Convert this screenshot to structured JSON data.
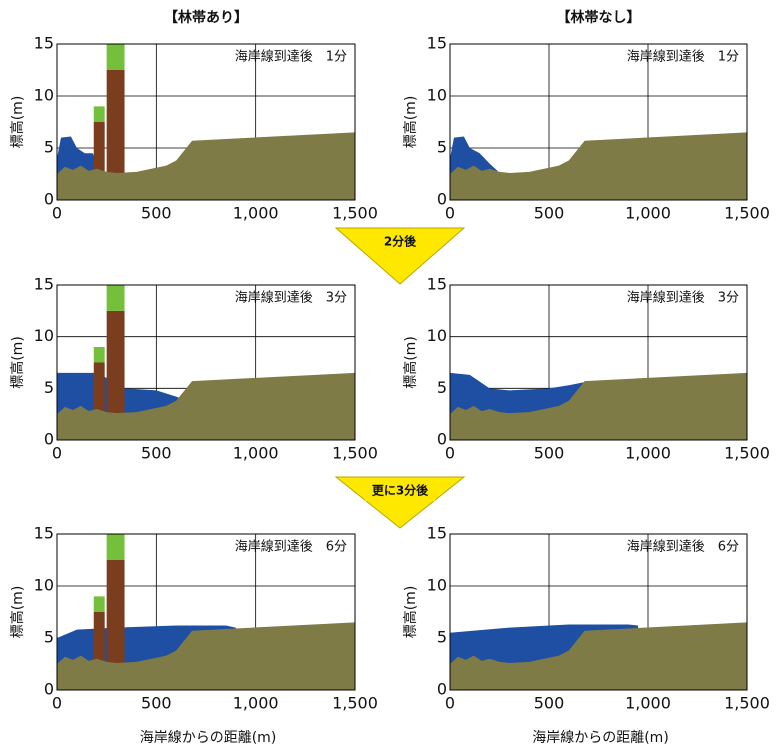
{
  "arrows": [
    "2分後",
    "更に3分後"
  ],
  "chart_data": [
    {
      "type": "area",
      "title": "【林帯あり】",
      "annotation": "海岸線到達後　1分",
      "ylabel": "標高(m)",
      "xlim": [
        0,
        1500
      ],
      "ylim": [
        0,
        15
      ],
      "xticks": [
        0,
        500,
        {
          "value": 1000,
          "label": "1,000"
        },
        {
          "value": 1500,
          "label": "1,500"
        }
      ],
      "yticks": [
        0,
        5,
        10,
        15
      ],
      "grid": true,
      "colors": {
        "ground": "#7e7b46",
        "water": "#1f4fa3",
        "trunk": "#7a3e1f",
        "crown": "#74bf3c"
      },
      "water": {
        "x": [
          0,
          20,
          70,
          100,
          140,
          180,
          210
        ],
        "y": [
          4,
          6,
          6.1,
          5,
          4.5,
          4.5,
          3.3
        ]
      },
      "ground": {
        "x": [
          0,
          40,
          80,
          120,
          160,
          200,
          250,
          300,
          400,
          550,
          600,
          680,
          1500
        ],
        "y": [
          2.5,
          3.2,
          2.9,
          3.3,
          2.8,
          3,
          2.7,
          2.6,
          2.7,
          3.3,
          3.8,
          5.7,
          6.5
        ]
      },
      "forest": [
        {
          "x": [
            185,
            240
          ],
          "trunk": 7.5,
          "crown": 9
        },
        {
          "x": [
            250,
            340
          ],
          "trunk": 12.5,
          "crown": 15
        }
      ]
    },
    {
      "type": "area",
      "title": "【林帯なし】",
      "annotation": "海岸線到達後　1分",
      "ylabel": "標高(m)",
      "xlim": [
        0,
        1500
      ],
      "ylim": [
        0,
        15
      ],
      "xticks": [
        0,
        500,
        {
          "value": 1000,
          "label": "1,000"
        },
        {
          "value": 1500,
          "label": "1,500"
        }
      ],
      "yticks": [
        0,
        5,
        10,
        15
      ],
      "grid": true,
      "colors": {
        "ground": "#7e7b46",
        "water": "#1f4fa3"
      },
      "water": {
        "x": [
          0,
          20,
          70,
          100,
          150,
          200,
          240
        ],
        "y": [
          4,
          6,
          6.1,
          5,
          4.5,
          3.5,
          2.8
        ]
      },
      "ground": {
        "x": [
          0,
          40,
          80,
          120,
          160,
          200,
          250,
          300,
          400,
          550,
          600,
          680,
          1500
        ],
        "y": [
          2.5,
          3.2,
          2.9,
          3.3,
          2.8,
          3,
          2.7,
          2.6,
          2.7,
          3.3,
          3.8,
          5.7,
          6.5
        ]
      }
    },
    {
      "type": "area",
      "annotation": "海岸線到達後　3分",
      "ylabel": "標高(m)",
      "xlim": [
        0,
        1500
      ],
      "ylim": [
        0,
        15
      ],
      "xticks": [
        0,
        500,
        {
          "value": 1000,
          "label": "1,000"
        },
        {
          "value": 1500,
          "label": "1,500"
        }
      ],
      "yticks": [
        0,
        5,
        10,
        15
      ],
      "grid": true,
      "colors": {
        "ground": "#7e7b46",
        "water": "#1f4fa3",
        "trunk": "#7a3e1f",
        "crown": "#74bf3c"
      },
      "water": {
        "x": [
          0,
          200,
          250,
          340,
          500,
          600,
          650
        ],
        "y": [
          6.5,
          6.5,
          6,
          5,
          4.8,
          4.2,
          3.8
        ]
      },
      "ground": {
        "x": [
          0,
          40,
          80,
          120,
          160,
          200,
          250,
          300,
          400,
          550,
          600,
          680,
          1500
        ],
        "y": [
          2.5,
          3.2,
          2.9,
          3.3,
          2.8,
          3,
          2.7,
          2.6,
          2.7,
          3.3,
          3.8,
          5.7,
          6.5
        ]
      },
      "forest": [
        {
          "x": [
            185,
            240
          ],
          "trunk": 7.5,
          "crown": 9
        },
        {
          "x": [
            250,
            340
          ],
          "trunk": 12.5,
          "crown": 15
        }
      ]
    },
    {
      "type": "area",
      "annotation": "海岸線到達後　3分",
      "ylabel": "標高(m)",
      "xlim": [
        0,
        1500
      ],
      "ylim": [
        0,
        15
      ],
      "xticks": [
        0,
        500,
        {
          "value": 1000,
          "label": "1,000"
        },
        {
          "value": 1500,
          "label": "1,500"
        }
      ],
      "yticks": [
        0,
        5,
        10,
        15
      ],
      "grid": true,
      "colors": {
        "ground": "#7e7b46",
        "water": "#1f4fa3"
      },
      "water": {
        "x": [
          0,
          100,
          200,
          300,
          500,
          600,
          680
        ],
        "y": [
          6.5,
          6.3,
          5,
          4.8,
          5,
          5.3,
          5.6
        ]
      },
      "ground": {
        "x": [
          0,
          40,
          80,
          120,
          160,
          200,
          250,
          300,
          400,
          550,
          600,
          680,
          1500
        ],
        "y": [
          2.5,
          3.2,
          2.9,
          3.3,
          2.8,
          3,
          2.7,
          2.6,
          2.7,
          3.3,
          3.8,
          5.7,
          6.5
        ]
      }
    },
    {
      "type": "area",
      "annotation": "海岸線到達後　6分",
      "ylabel": "標高(m)",
      "xlabel": "海岸線からの距離(m)",
      "xlim": [
        0,
        1500
      ],
      "ylim": [
        0,
        15
      ],
      "xticks": [
        0,
        500,
        {
          "value": 1000,
          "label": "1,000"
        },
        {
          "value": 1500,
          "label": "1,500"
        }
      ],
      "yticks": [
        0,
        5,
        10,
        15
      ],
      "grid": true,
      "colors": {
        "ground": "#7e7b46",
        "water": "#1f4fa3",
        "trunk": "#7a3e1f",
        "crown": "#74bf3c"
      },
      "water": {
        "x": [
          0,
          100,
          300,
          600,
          850,
          900
        ],
        "y": [
          5,
          5.8,
          6,
          6.2,
          6.2,
          6
        ]
      },
      "ground": {
        "x": [
          0,
          40,
          80,
          120,
          160,
          200,
          250,
          300,
          400,
          550,
          600,
          680,
          1500
        ],
        "y": [
          2.5,
          3.2,
          2.9,
          3.3,
          2.8,
          3,
          2.7,
          2.6,
          2.7,
          3.3,
          3.8,
          5.7,
          6.5
        ]
      },
      "forest": [
        {
          "x": [
            185,
            240
          ],
          "trunk": 7.5,
          "crown": 9
        },
        {
          "x": [
            250,
            340
          ],
          "trunk": 12.5,
          "crown": 15
        }
      ]
    },
    {
      "type": "area",
      "annotation": "海岸線到達後　6分",
      "ylabel": "標高(m)",
      "xlabel": "海岸線からの距離(m)",
      "xlim": [
        0,
        1500
      ],
      "ylim": [
        0,
        15
      ],
      "xticks": [
        0,
        500,
        {
          "value": 1000,
          "label": "1,000"
        },
        {
          "value": 1500,
          "label": "1,500"
        }
      ],
      "yticks": [
        0,
        5,
        10,
        15
      ],
      "grid": true,
      "colors": {
        "ground": "#7e7b46",
        "water": "#1f4fa3"
      },
      "water": {
        "x": [
          0,
          300,
          600,
          900,
          950
        ],
        "y": [
          5.5,
          6,
          6.3,
          6.3,
          6.2
        ]
      },
      "ground": {
        "x": [
          0,
          40,
          80,
          120,
          160,
          200,
          250,
          300,
          400,
          550,
          600,
          680,
          1500
        ],
        "y": [
          2.5,
          3.2,
          2.9,
          3.3,
          2.8,
          3,
          2.7,
          2.6,
          2.7,
          3.3,
          3.8,
          5.7,
          6.5
        ]
      }
    }
  ]
}
